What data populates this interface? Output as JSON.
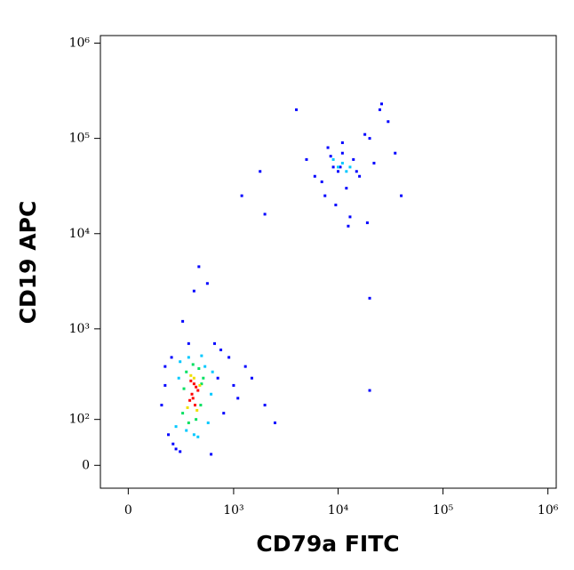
{
  "chart_data": {
    "type": "scatter",
    "xlabel": "CD79a FITC",
    "ylabel": "CD19 APC",
    "xscale": "biexponential",
    "yscale": "biexponential",
    "xlim": [
      -130,
      1200000
    ],
    "ylim": [
      -43,
      1200000
    ],
    "xticks": [
      0,
      {
        "value": 1000,
        "label": "10³"
      },
      {
        "value": 10000,
        "label": "10⁴"
      },
      {
        "value": 100000,
        "label": "10⁵"
      },
      {
        "value": 1000000,
        "label": "10⁶"
      }
    ],
    "yticks": [
      0,
      {
        "value": 100,
        "label": "10²"
      },
      {
        "value": 1000,
        "label": "10³"
      },
      {
        "value": 10000,
        "label": "10⁴"
      },
      {
        "value": 100000,
        "label": "10⁵"
      },
      {
        "value": 1000000,
        "label": "10⁶"
      }
    ],
    "series": [
      {
        "color": "#0000ff",
        "x": [
          160,
          200,
          700,
          800,
          900,
          230,
          650,
          1000,
          1300,
          1500,
          250,
          180,
          300,
          400,
          550,
          750,
          600,
          350,
          280,
          450,
          1100,
          2000,
          2500,
          180,
          220,
          5000,
          7000,
          8000,
          9000,
          10000,
          11000,
          12000,
          14000,
          16000,
          20000,
          25000,
          30000,
          40000,
          6000,
          9500,
          13000,
          18000,
          22000,
          11000,
          8500,
          4000,
          35000,
          15000,
          7500,
          19000,
          26000,
          10500,
          12500,
          1200,
          1800,
          2000,
          20000,
          20000
        ],
        "y": [
          150,
          60,
          300,
          120,
          500,
          40,
          700,
          250,
          400,
          300,
          30,
          400,
          1200,
          2500,
          3000,
          600,
          20,
          700,
          25,
          4500,
          180,
          150,
          90,
          250,
          500,
          60000,
          35000,
          80000,
          50000,
          45000,
          70000,
          30000,
          60000,
          40000,
          100000,
          200000,
          150000,
          25000,
          40000,
          20000,
          15000,
          110000,
          55000,
          90000,
          65000,
          200000,
          70000,
          45000,
          25000,
          13000,
          230000,
          50000,
          12000,
          25000,
          45000,
          16000,
          2100,
          220
        ]
      },
      {
        "color": "#00c8ff",
        "x": [
          250,
          600,
          280,
          560,
          400,
          350,
          480,
          270,
          620,
          330,
          440,
          520,
          10000,
          11000,
          12000,
          9000,
          13000
        ],
        "y": [
          80,
          200,
          450,
          90,
          60,
          500,
          520,
          300,
          350,
          70,
          55,
          400,
          50000,
          55000,
          45000,
          60000,
          50000
        ]
      },
      {
        "color": "#00e060",
        "x": [
          300,
          500,
          330,
          470,
          420,
          350,
          450,
          310,
          390,
          480
        ],
        "y": [
          120,
          300,
          350,
          150,
          100,
          90,
          380,
          230,
          420,
          260
        ]
      },
      {
        "color": "#f0e000",
        "x": [
          340,
          460,
          370,
          430,
          400
        ],
        "y": [
          140,
          250,
          320,
          130,
          300
        ]
      },
      {
        "color": "#ff0000",
        "x": [
          380,
          420,
          360,
          440,
          400,
          390,
          410,
          370
        ],
        "y": [
          200,
          240,
          170,
          220,
          260,
          180,
          150,
          280
        ]
      }
    ]
  }
}
